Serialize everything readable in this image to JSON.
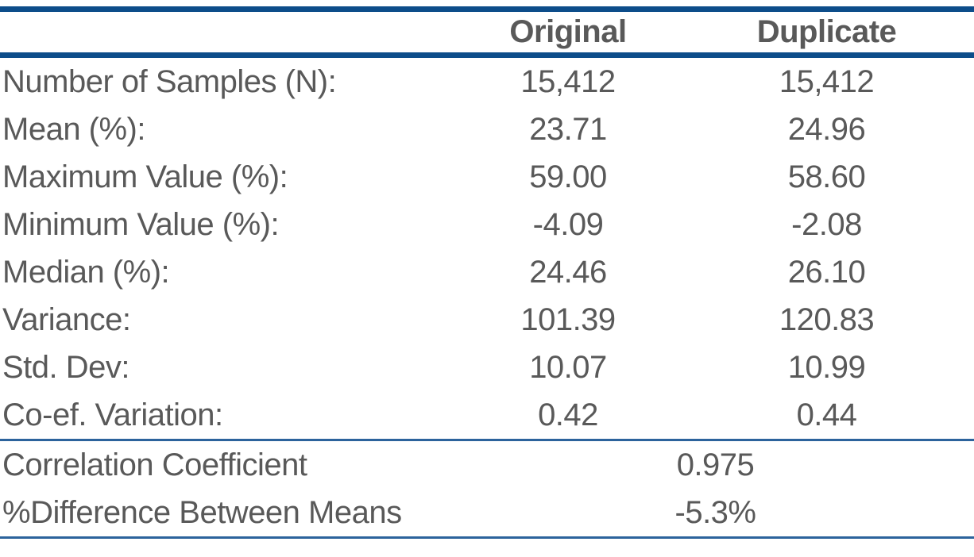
{
  "colors": {
    "rule_blue_thick": "#0d4d8a",
    "rule_blue_thin": "#2c639c",
    "text_gray": "#595959",
    "background": "#ffffff"
  },
  "chart_data": {
    "type": "table",
    "columns": [
      "",
      "Original",
      "Duplicate"
    ],
    "rows": [
      [
        "Number of Samples (N):",
        "15,412",
        "15,412"
      ],
      [
        "Mean (%):",
        "23.71",
        "24.96"
      ],
      [
        "Maximum Value (%):",
        "59.00",
        "58.60"
      ],
      [
        "Minimum Value (%):",
        "-4.09",
        "-2.08"
      ],
      [
        "Median (%):",
        "24.46",
        "26.10"
      ],
      [
        "Variance:",
        "101.39",
        "120.83"
      ],
      [
        "Std. Dev:",
        "10.07",
        "10.99"
      ],
      [
        "Co-ef. Variation:",
        "0.42",
        "0.44"
      ]
    ],
    "summary_rows": [
      [
        "Correlation Coefficient",
        "0.975"
      ],
      [
        "%Difference Between Means",
        "-5.3%"
      ]
    ],
    "layout": {
      "grid": "horizontal-rules-only",
      "value_alignment": "center",
      "summary_values_span": "both-value-columns"
    }
  }
}
